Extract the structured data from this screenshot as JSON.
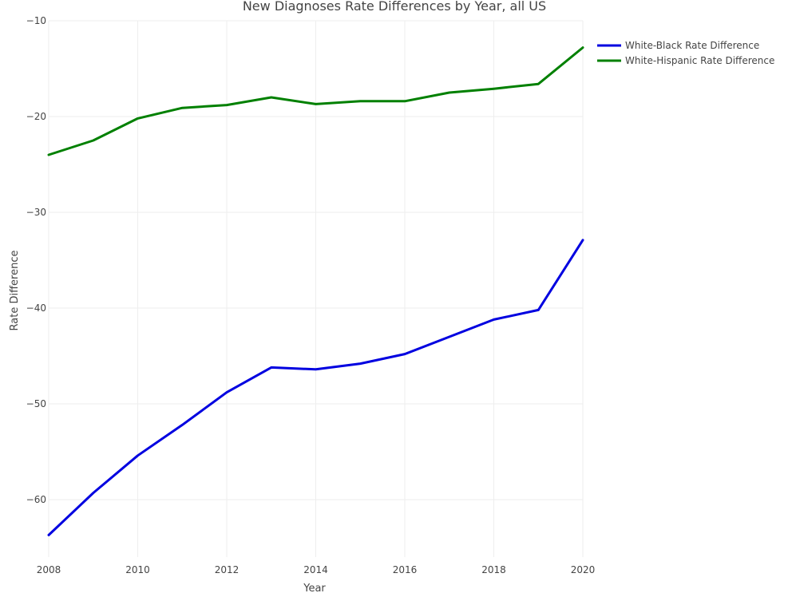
{
  "chart_data": {
    "type": "line",
    "title": "New Diagnoses Rate Differences by Year, all US",
    "xlabel": "Year",
    "ylabel": "Rate Difference",
    "xlim": [
      2008,
      2020
    ],
    "ylim": [
      -67,
      -10
    ],
    "x_ticks": [
      2008,
      2010,
      2012,
      2014,
      2016,
      2018,
      2020
    ],
    "x_tick_labels": [
      "2008",
      "2010",
      "2012",
      "2014",
      "2016",
      "2018",
      "2020"
    ],
    "y_ticks": [
      -10,
      -20,
      -30,
      -40,
      -50,
      -60
    ],
    "y_tick_labels": [
      "−10",
      "−20",
      "−30",
      "−40",
      "−50",
      "−60"
    ],
    "grid": true,
    "legend_position": "top-right",
    "x": [
      2008,
      2009,
      2010,
      2011,
      2012,
      2013,
      2014,
      2015,
      2016,
      2017,
      2018,
      2019,
      2020
    ],
    "series": [
      {
        "name": "White-Black Rate Difference",
        "color": "#0000e0",
        "values": [
          -63.7,
          -59.3,
          -55.4,
          -52.2,
          -48.8,
          -46.2,
          -46.4,
          -45.8,
          -44.8,
          -43.0,
          -41.2,
          -40.2,
          -32.9
        ]
      },
      {
        "name": "White-Hispanic Rate Difference",
        "color": "#008000",
        "values": [
          -24.0,
          -22.5,
          -20.2,
          -19.1,
          -18.8,
          -18.0,
          -18.7,
          -18.4,
          -18.4,
          -17.5,
          -17.1,
          -16.6,
          -12.8
        ]
      }
    ]
  }
}
